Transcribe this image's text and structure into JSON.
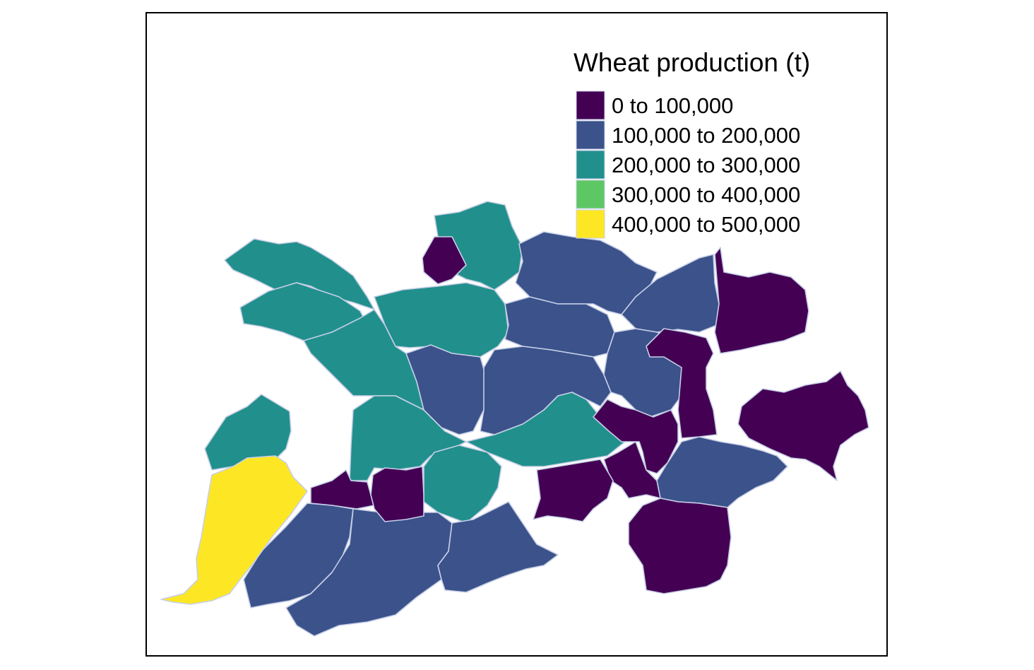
{
  "map": {
    "legend": {
      "title": "Wheat production (t)",
      "classes": [
        {
          "label": "0 to 100,000",
          "color": "#440154"
        },
        {
          "label": "100,000 to 200,000",
          "color": "#3B528B"
        },
        {
          "label": "200,000 to 300,000",
          "color": "#21908C"
        },
        {
          "label": "300,000 to 400,000",
          "color": "#5DC863"
        },
        {
          "label": "400,000 to 500,000",
          "color": "#FDE725"
        }
      ]
    },
    "border_color": "#c7cfe6",
    "frame_color": "#000000"
  }
}
